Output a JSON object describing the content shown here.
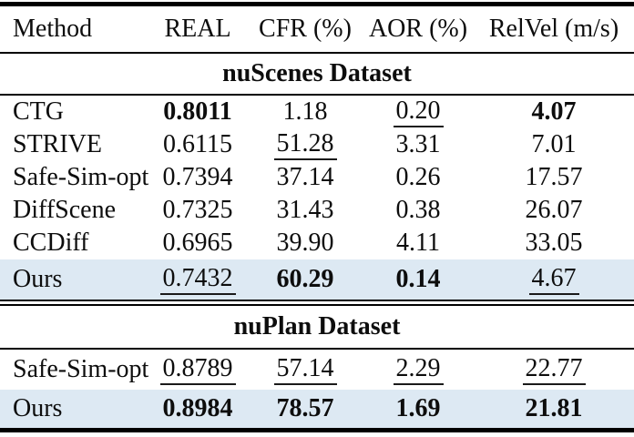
{
  "header": {
    "columns": [
      "Method",
      "REAL",
      "CFR (%)",
      "AOR (%)",
      "RelVel (m/s)"
    ]
  },
  "sections": [
    {
      "title": "nuScenes Dataset",
      "rows": [
        {
          "method": "CTG",
          "highlight": false,
          "cells": [
            {
              "text": "0.8011",
              "style": "bold"
            },
            {
              "text": "1.18",
              "style": "normal"
            },
            {
              "text": "0.20",
              "style": "underline"
            },
            {
              "text": "4.07",
              "style": "bold"
            }
          ]
        },
        {
          "method": "STRIVE",
          "highlight": false,
          "cells": [
            {
              "text": "0.6115",
              "style": "normal"
            },
            {
              "text": "51.28",
              "style": "underline"
            },
            {
              "text": "3.31",
              "style": "normal"
            },
            {
              "text": "7.01",
              "style": "normal"
            }
          ]
        },
        {
          "method": "Safe-Sim-opt",
          "highlight": false,
          "cells": [
            {
              "text": "0.7394",
              "style": "normal"
            },
            {
              "text": "37.14",
              "style": "normal"
            },
            {
              "text": "0.26",
              "style": "normal"
            },
            {
              "text": "17.57",
              "style": "normal"
            }
          ]
        },
        {
          "method": "DiffScene",
          "highlight": false,
          "cells": [
            {
              "text": "0.7325",
              "style": "normal"
            },
            {
              "text": "31.43",
              "style": "normal"
            },
            {
              "text": "0.38",
              "style": "normal"
            },
            {
              "text": "26.07",
              "style": "normal"
            }
          ]
        },
        {
          "method": "CCDiff",
          "highlight": false,
          "cells": [
            {
              "text": "0.6965",
              "style": "normal"
            },
            {
              "text": "39.90",
              "style": "normal"
            },
            {
              "text": "4.11",
              "style": "normal"
            },
            {
              "text": "33.05",
              "style": "normal"
            }
          ]
        },
        {
          "method": "Ours",
          "highlight": true,
          "cells": [
            {
              "text": "0.7432",
              "style": "underline"
            },
            {
              "text": "60.29",
              "style": "bold"
            },
            {
              "text": "0.14",
              "style": "bold"
            },
            {
              "text": "4.67",
              "style": "underline"
            }
          ]
        }
      ]
    },
    {
      "title": "nuPlan Dataset",
      "rows": [
        {
          "method": "Safe-Sim-opt",
          "highlight": false,
          "cells": [
            {
              "text": "0.8789",
              "style": "underline"
            },
            {
              "text": "57.14",
              "style": "underline"
            },
            {
              "text": "2.29",
              "style": "underline"
            },
            {
              "text": "22.77",
              "style": "underline"
            }
          ]
        },
        {
          "method": "Ours",
          "highlight": true,
          "cells": [
            {
              "text": "0.8984",
              "style": "bold"
            },
            {
              "text": "78.57",
              "style": "bold"
            },
            {
              "text": "1.69",
              "style": "bold"
            },
            {
              "text": "21.81",
              "style": "bold"
            }
          ]
        }
      ]
    }
  ],
  "colors": {
    "highlight_row": "#dde9f3",
    "rule": "#000000",
    "text": "#0d0d0d",
    "background": "#ffffff"
  }
}
